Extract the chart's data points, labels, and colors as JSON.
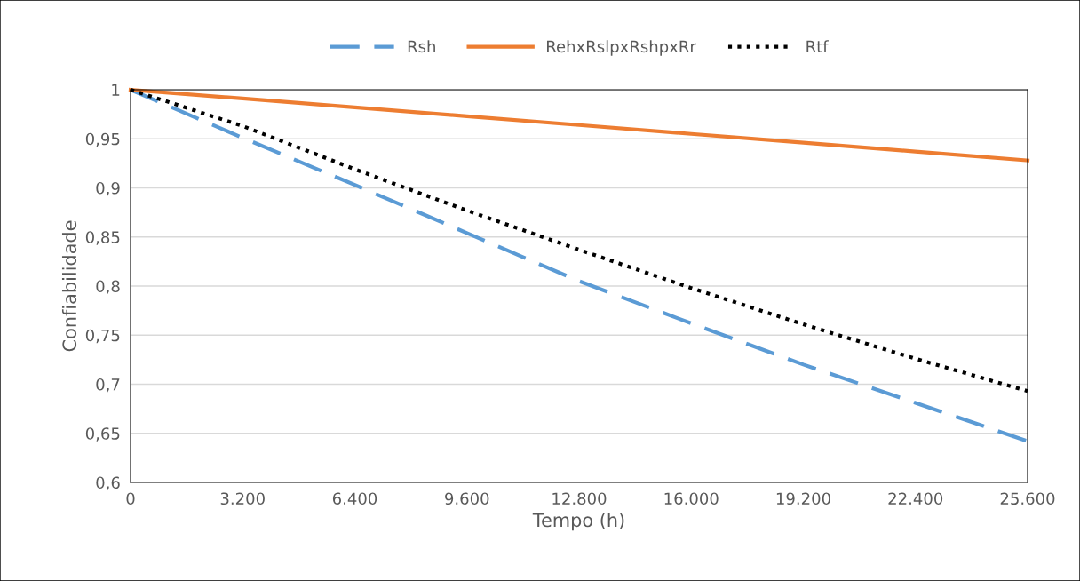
{
  "chart_data": {
    "type": "line",
    "xlabel": "Tempo (h)",
    "ylabel": "Confiabilidade",
    "x": [
      0,
      3200,
      6400,
      9600,
      12800,
      16000,
      19200,
      22400,
      25600
    ],
    "series": [
      {
        "name": "Rsh",
        "color": "#5b9bd5",
        "line_style": "dashed",
        "values": [
          1,
          0.951,
          0.903,
          0.854,
          0.805,
          0.762,
          0.72,
          0.681,
          0.642
        ]
      },
      {
        "name": "RehxRslpxRshpxRr",
        "color": "#ed7d31",
        "line_style": "solid",
        "values": [
          1,
          0.991,
          0.982,
          0.973,
          0.964,
          0.955,
          0.946,
          0.937,
          0.928
        ]
      },
      {
        "name": "Rtf",
        "color": "#000000",
        "line_style": "dotted",
        "values": [
          1,
          0.963,
          0.919,
          0.877,
          0.837,
          0.798,
          0.761,
          0.726,
          0.693
        ]
      }
    ],
    "xlim": [
      0,
      25600
    ],
    "xticks": [
      0,
      {
        "value": 3200,
        "label": "3.200"
      },
      {
        "value": 6400,
        "label": "6.400"
      },
      {
        "value": 9600,
        "label": "9.600"
      },
      {
        "value": 12800,
        "label": "12.800"
      },
      {
        "value": 16000,
        "label": "16.000"
      },
      {
        "value": 19200,
        "label": "19.200"
      },
      {
        "value": 22400,
        "label": "22.400"
      },
      {
        "value": 25600,
        "label": "25.600"
      }
    ],
    "ylim": [
      0.6,
      1
    ],
    "yticks": [
      {
        "value": 0.6,
        "label": "0,6"
      },
      {
        "value": 0.65,
        "label": "0,65"
      },
      {
        "value": 0.7,
        "label": "0,7"
      },
      {
        "value": 0.75,
        "label": "0,75"
      },
      {
        "value": 0.8,
        "label": "0,8"
      },
      {
        "value": 0.85,
        "label": "0,85"
      },
      {
        "value": 0.9,
        "label": "0,9"
      },
      {
        "value": 0.95,
        "label": "0,95"
      },
      {
        "value": 1,
        "label": "1"
      }
    ],
    "grid": "y",
    "legend": "top",
    "marker": "none"
  }
}
